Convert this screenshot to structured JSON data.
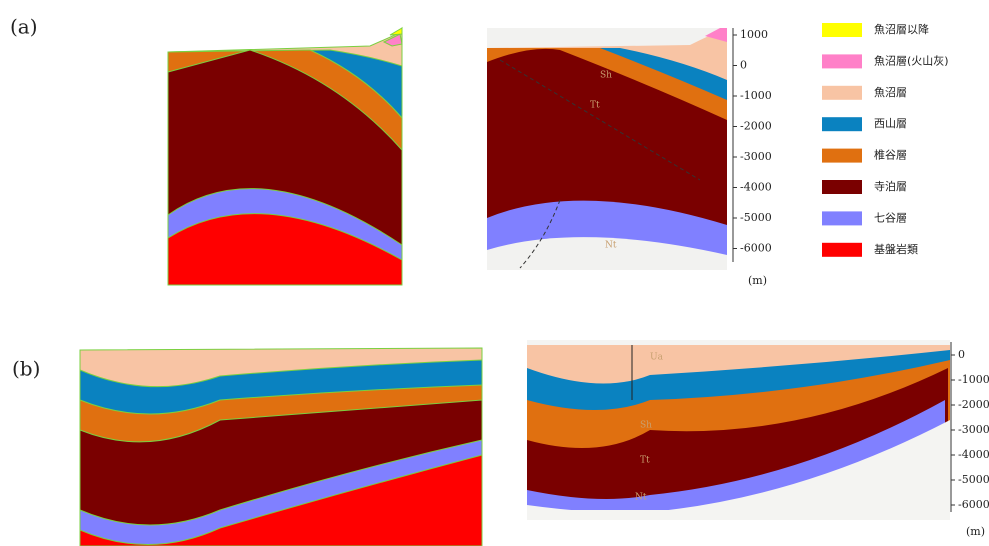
{
  "panels": [
    {
      "label": "(a)",
      "depth_axis": {
        "ticks": [
          1000,
          0,
          -1000,
          -2000,
          -3000,
          -4000,
          -5000,
          -6000
        ],
        "unit": "(m)"
      },
      "layer_labels": [
        "Sh",
        "Tt",
        "Nt"
      ]
    },
    {
      "label": "(b)",
      "depth_axis": {
        "ticks": [
          0,
          -1000,
          -2000,
          -3000,
          -4000,
          -5000,
          -6000
        ],
        "unit": "(m)"
      },
      "layer_labels": [
        "Ua",
        "Sh",
        "Tt",
        "Nt"
      ]
    }
  ],
  "legend": [
    {
      "label": "魚沼層以降",
      "color": "#ffff00"
    },
    {
      "label": "魚沼層(火山灰)",
      "color": "#ff80c8"
    },
    {
      "label": "魚沼層",
      "color": "#f8c4a4"
    },
    {
      "label": "西山層",
      "color": "#0a82c0"
    },
    {
      "label": "椎谷層",
      "color": "#e07010"
    },
    {
      "label": "寺泊層",
      "color": "#7a0000"
    },
    {
      "label": "七谷層",
      "color": "#8080ff"
    },
    {
      "label": "基盤岩類",
      "color": "#ff0000"
    }
  ]
}
